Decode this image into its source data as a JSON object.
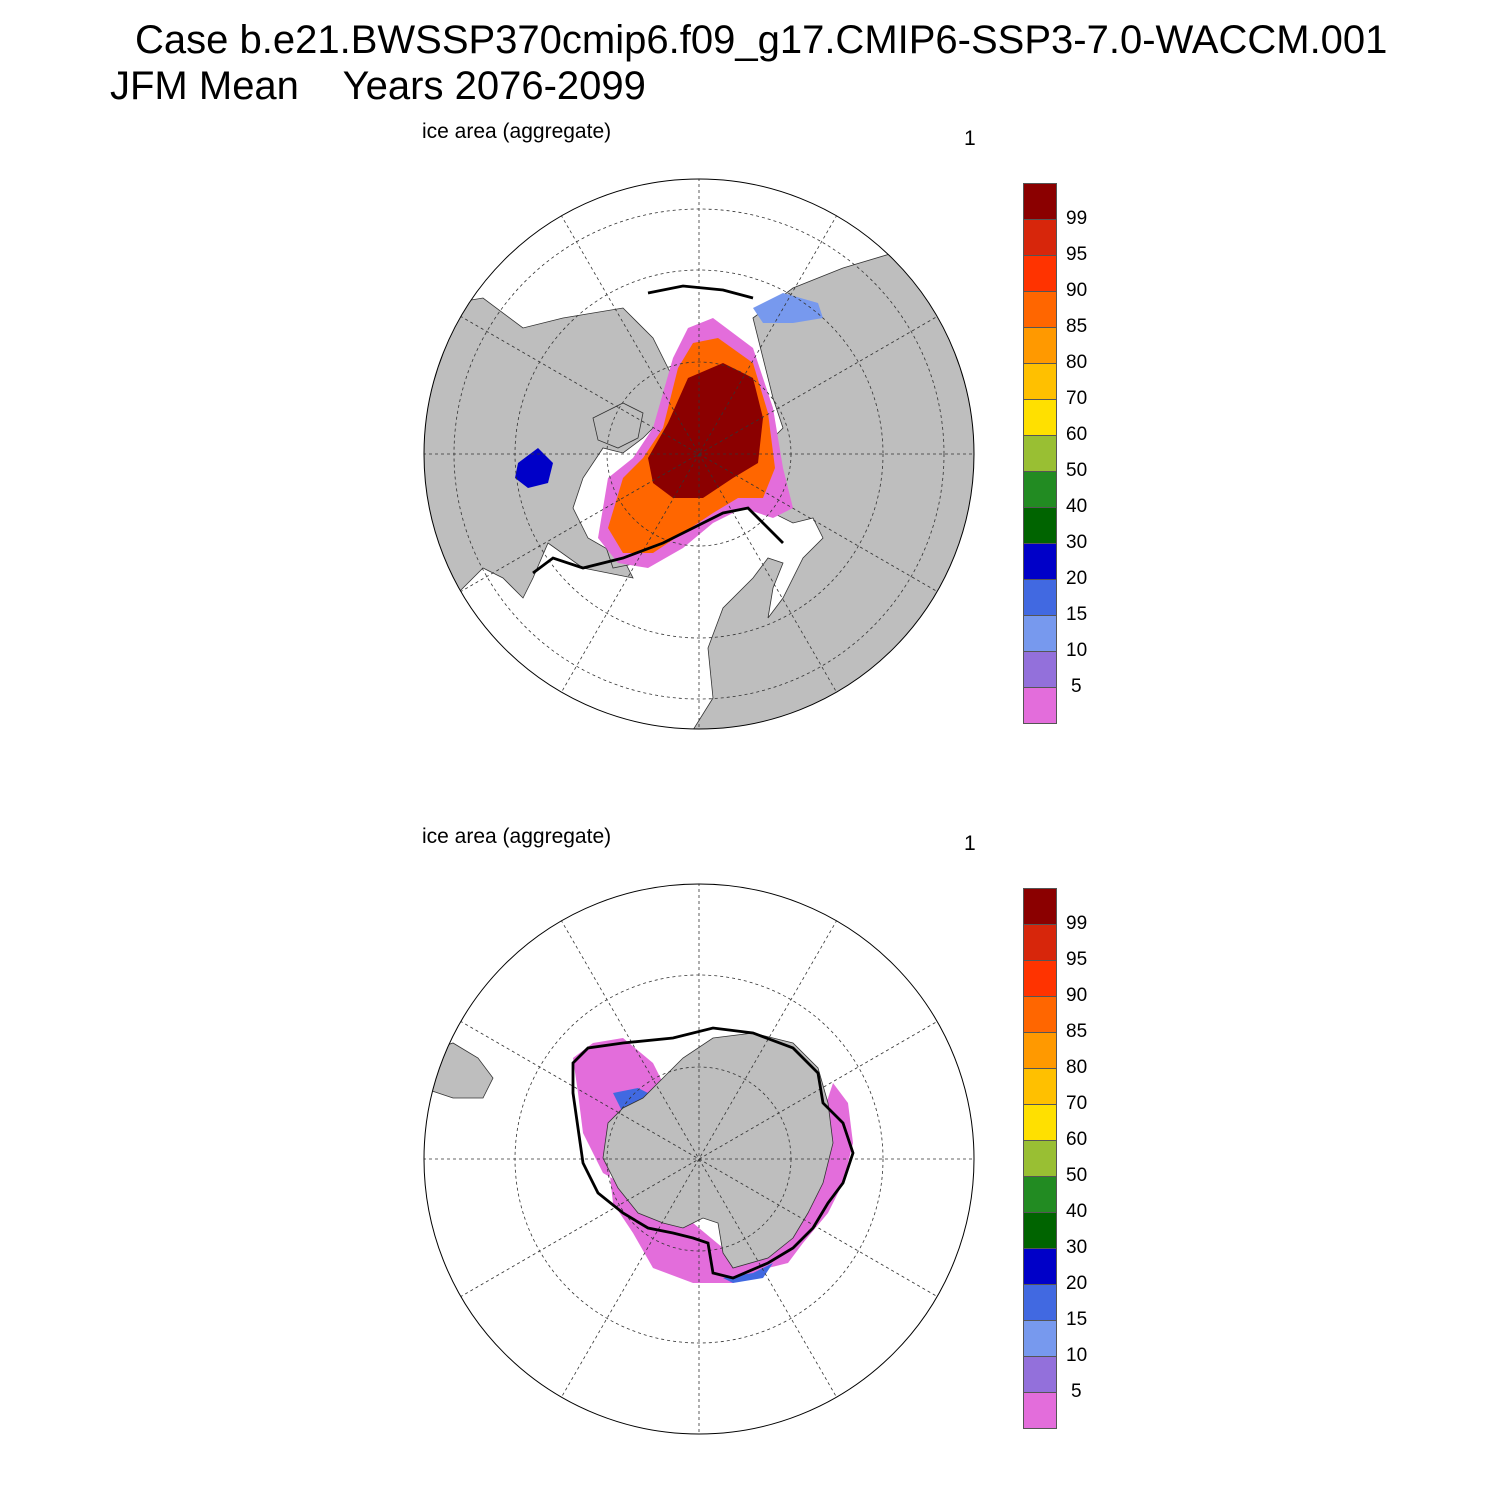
{
  "title": {
    "line1": "Case b.e21.BWSSP370cmip6.f09_g17.CMIP6-SSP3-7.0-WACCM.001",
    "line2": "JFM Mean    Years 2076-2099"
  },
  "panels": [
    {
      "id": "north",
      "label": "ice area  (aggregate)",
      "number": "1"
    },
    {
      "id": "south",
      "label": "ice area  (aggregate)",
      "number": "1"
    }
  ],
  "colorbar": {
    "labels": [
      "99",
      "95",
      "90",
      "85",
      "80",
      "70",
      "60",
      "50",
      "40",
      "30",
      "20",
      "15",
      "10",
      "5"
    ],
    "colors": [
      "#8b0000",
      "#d7260b",
      "#ff3300",
      "#ff6600",
      "#ff9900",
      "#ffc000",
      "#ffe000",
      "#99bf33",
      "#228b22",
      "#006400",
      "#0000c8",
      "#4169e1",
      "#7799ee",
      "#9370db",
      "#e36ddb"
    ]
  },
  "colors": {
    "land": "#bebebe",
    "ocean": "#ffffff",
    "outline": "#000000"
  }
}
